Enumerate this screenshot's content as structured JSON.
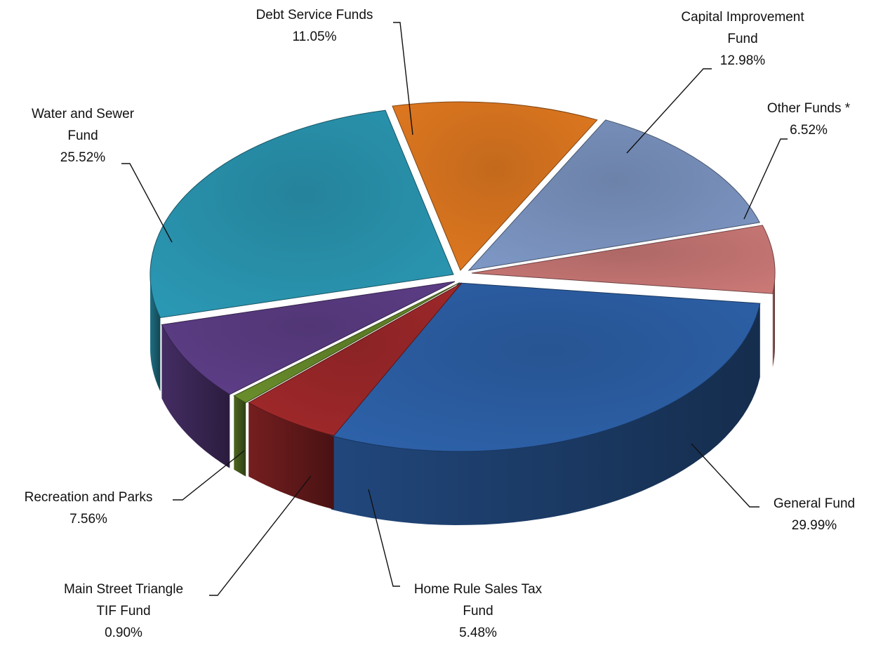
{
  "chart_data": {
    "type": "pie",
    "title": "",
    "slices": [
      {
        "label": [
          "General Fund"
        ],
        "pct_text": "29.99%",
        "value": 29.99,
        "color": "#2e63ac"
      },
      {
        "label": [
          "Home Rule Sales Tax",
          "Fund"
        ],
        "pct_text": "5.48%",
        "value": 5.48,
        "color": "#a3292b"
      },
      {
        "label": [
          "Main Street Triangle",
          "TIF Fund"
        ],
        "pct_text": "0.90%",
        "value": 0.9,
        "color": "#6a8e2c"
      },
      {
        "label": [
          "Recreation and Parks"
        ],
        "pct_text": "7.56%",
        "value": 7.56,
        "color": "#5f3f8a"
      },
      {
        "label": [
          "Water and Sewer",
          "Fund"
        ],
        "pct_text": "25.52%",
        "value": 25.52,
        "color": "#2b9ab6"
      },
      {
        "label": [
          "Debt Service Funds"
        ],
        "pct_text": "11.05%",
        "value": 11.05,
        "color": "#e57b21"
      },
      {
        "label": [
          "Capital Improvement",
          "Fund"
        ],
        "pct_text": "12.98%",
        "value": 12.98,
        "color": "#7f99c7"
      },
      {
        "label": [
          "Other Funds *"
        ],
        "pct_text": "6.52%",
        "value": 6.52,
        "color": "#cd7a78"
      }
    ]
  }
}
